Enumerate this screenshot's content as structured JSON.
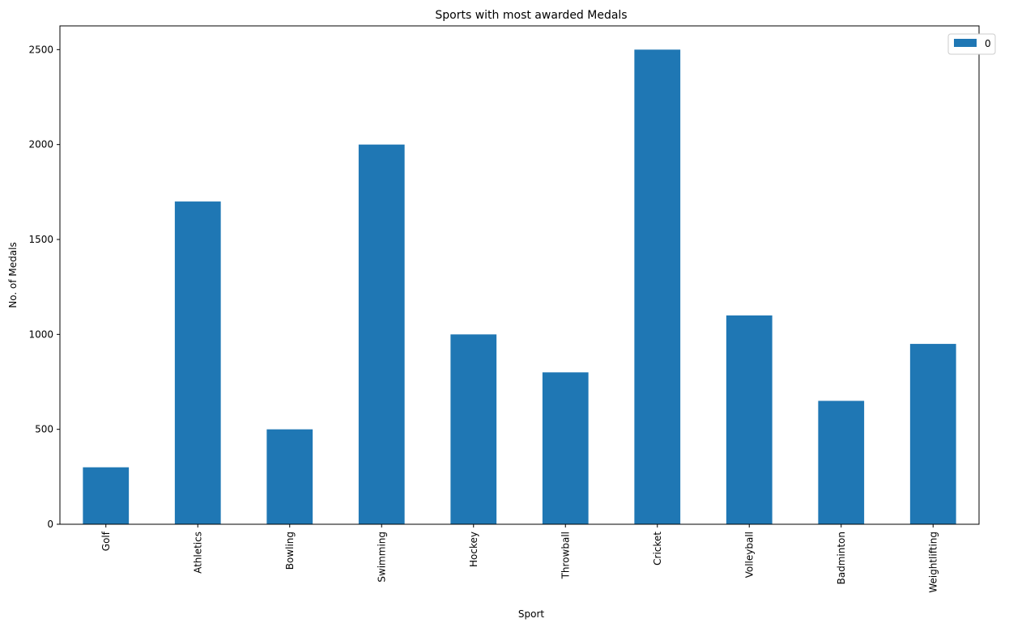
{
  "chart_data": {
    "type": "bar",
    "title": "Sports with most awarded Medals",
    "xlabel": "Sport",
    "ylabel": "No. of Medals",
    "categories": [
      "Golf",
      "Athletics",
      "Bowling",
      "Swimming",
      "Hockey",
      "Throwball",
      "Cricket",
      "Volleyball",
      "Badminton",
      "Weightlifting"
    ],
    "series": [
      {
        "name": "0",
        "values": [
          300,
          1700,
          500,
          2000,
          1000,
          800,
          2500,
          1100,
          650,
          950
        ],
        "color": "#1f77b4"
      }
    ],
    "ylim": [
      0,
      2625
    ],
    "yticks": [
      0,
      500,
      1000,
      1500,
      2000,
      2500
    ],
    "grid": false,
    "legend": "top-right"
  }
}
